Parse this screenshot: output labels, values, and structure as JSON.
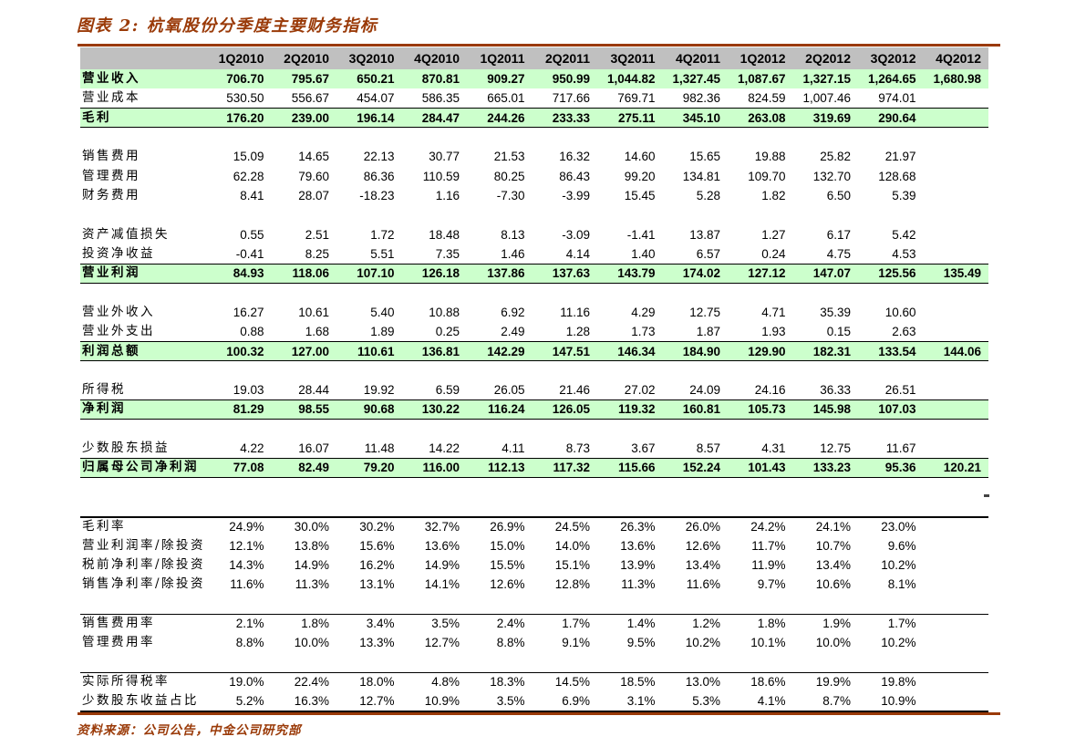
{
  "page": {
    "title": "图表 2: 杭氧股份分季度主要财务指标",
    "source_note": "资料来源：公司公告，中金公司研究部"
  },
  "colors": {
    "accent": "#9a3a08",
    "header_bg": "#c0c0c0",
    "highlight_bg": "#ccffcc"
  },
  "table": {
    "columns": [
      "1Q2010",
      "2Q2010",
      "3Q2010",
      "4Q2010",
      "1Q2011",
      "2Q2011",
      "3Q2011",
      "4Q2011",
      "1Q2012",
      "2Q2012",
      "3Q2012",
      "4Q2012"
    ],
    "rows": [
      {
        "label": "营业收入",
        "type": "highlight",
        "values": [
          "706.70",
          "795.67",
          "650.21",
          "870.81",
          "909.27",
          "950.99",
          "1,044.82",
          "1,327.45",
          "1,087.67",
          "1,327.15",
          "1,264.65",
          "1,680.98"
        ]
      },
      {
        "label": "营业成本",
        "type": "plain",
        "values": [
          "530.50",
          "556.67",
          "454.07",
          "586.35",
          "665.01",
          "717.66",
          "769.71",
          "982.36",
          "824.59",
          "1,007.46",
          "974.01",
          ""
        ]
      },
      {
        "label": "毛利",
        "type": "subtotal",
        "values": [
          "176.20",
          "239.00",
          "196.14",
          "284.47",
          "244.26",
          "233.33",
          "275.11",
          "345.10",
          "263.08",
          "319.69",
          "290.64",
          ""
        ]
      },
      {
        "type": "spacer"
      },
      {
        "label": "销售费用",
        "type": "plain",
        "values": [
          "15.09",
          "14.65",
          "22.13",
          "30.77",
          "21.53",
          "16.32",
          "14.60",
          "15.65",
          "19.88",
          "25.82",
          "21.97",
          ""
        ]
      },
      {
        "label": "管理费用",
        "type": "plain",
        "values": [
          "62.28",
          "79.60",
          "86.36",
          "110.59",
          "80.25",
          "86.43",
          "99.20",
          "134.81",
          "109.70",
          "132.70",
          "128.68",
          ""
        ]
      },
      {
        "label": "财务费用",
        "type": "plain",
        "values": [
          "8.41",
          "28.07",
          "-18.23",
          "1.16",
          "-7.30",
          "-3.99",
          "15.45",
          "5.28",
          "1.82",
          "6.50",
          "5.39",
          ""
        ]
      },
      {
        "type": "spacer"
      },
      {
        "label": "资产减值损失",
        "type": "plain",
        "values": [
          "0.55",
          "2.51",
          "1.72",
          "18.48",
          "8.13",
          "-3.09",
          "-1.41",
          "13.87",
          "1.27",
          "6.17",
          "5.42",
          ""
        ]
      },
      {
        "label": "投资净收益",
        "type": "plain",
        "values": [
          "-0.41",
          "8.25",
          "5.51",
          "7.35",
          "1.46",
          "4.14",
          "1.40",
          "6.57",
          "0.24",
          "4.75",
          "4.53",
          ""
        ]
      },
      {
        "label": "营业利润",
        "type": "subtotal",
        "values": [
          "84.93",
          "118.06",
          "107.10",
          "126.18",
          "137.86",
          "137.63",
          "143.79",
          "174.02",
          "127.12",
          "147.07",
          "125.56",
          "135.49"
        ]
      },
      {
        "type": "spacer"
      },
      {
        "label": "营业外收入",
        "type": "plain",
        "values": [
          "16.27",
          "10.61",
          "5.40",
          "10.88",
          "6.92",
          "11.16",
          "4.29",
          "12.75",
          "4.71",
          "35.39",
          "10.60",
          ""
        ]
      },
      {
        "label": "营业外支出",
        "type": "plain",
        "values": [
          "0.88",
          "1.68",
          "1.89",
          "0.25",
          "2.49",
          "1.28",
          "1.73",
          "1.87",
          "1.93",
          "0.15",
          "2.63",
          ""
        ]
      },
      {
        "label": "利润总额",
        "type": "subtotal",
        "values": [
          "100.32",
          "127.00",
          "110.61",
          "136.81",
          "142.29",
          "147.51",
          "146.34",
          "184.90",
          "129.90",
          "182.31",
          "133.54",
          "144.06"
        ]
      },
      {
        "type": "spacer"
      },
      {
        "label": "所得税",
        "type": "plain",
        "values": [
          "19.03",
          "28.44",
          "19.92",
          "6.59",
          "26.05",
          "21.46",
          "27.02",
          "24.09",
          "24.16",
          "36.33",
          "26.51",
          ""
        ]
      },
      {
        "label": "净利润",
        "type": "subtotal",
        "values": [
          "81.29",
          "98.55",
          "90.68",
          "130.22",
          "116.24",
          "126.05",
          "119.32",
          "160.81",
          "105.73",
          "145.98",
          "107.03",
          ""
        ]
      },
      {
        "type": "spacer"
      },
      {
        "label": "少数股东损益",
        "type": "plain",
        "values": [
          "4.22",
          "16.07",
          "11.48",
          "14.22",
          "4.11",
          "8.73",
          "3.67",
          "8.57",
          "4.31",
          "12.75",
          "11.67",
          ""
        ]
      },
      {
        "label": "归属母公司净利润",
        "type": "subtotal",
        "values": [
          "77.08",
          "82.49",
          "79.20",
          "116.00",
          "112.13",
          "117.32",
          "115.66",
          "152.24",
          "101.43",
          "133.23",
          "95.36",
          "120.21"
        ]
      },
      {
        "type": "spacer"
      },
      {
        "type": "spacer"
      },
      {
        "label": "毛利率",
        "type": "plain",
        "rule": "rule-top-thick",
        "values": [
          "24.9%",
          "30.0%",
          "30.2%",
          "32.7%",
          "26.9%",
          "24.5%",
          "26.3%",
          "26.0%",
          "24.2%",
          "24.1%",
          "23.0%",
          ""
        ]
      },
      {
        "label": "营业利润率/除投资",
        "type": "plain",
        "values": [
          "12.1%",
          "13.8%",
          "15.6%",
          "13.6%",
          "15.0%",
          "14.0%",
          "13.6%",
          "12.6%",
          "11.7%",
          "10.7%",
          "9.6%",
          ""
        ]
      },
      {
        "label": "税前净利率/除投资",
        "type": "plain",
        "values": [
          "14.3%",
          "14.9%",
          "16.2%",
          "14.9%",
          "15.5%",
          "15.1%",
          "13.9%",
          "13.4%",
          "11.9%",
          "13.4%",
          "10.2%",
          ""
        ]
      },
      {
        "label": "销售净利率/除投资",
        "type": "plain",
        "values": [
          "11.6%",
          "11.3%",
          "13.1%",
          "14.1%",
          "12.6%",
          "12.8%",
          "11.3%",
          "11.6%",
          "9.7%",
          "10.6%",
          "8.1%",
          ""
        ]
      },
      {
        "type": "spacer"
      },
      {
        "label": "销售费用率",
        "type": "plain",
        "rule": "rule-top-thin",
        "values": [
          "2.1%",
          "1.8%",
          "3.4%",
          "3.5%",
          "2.4%",
          "1.7%",
          "1.4%",
          "1.2%",
          "1.8%",
          "1.9%",
          "1.7%",
          ""
        ]
      },
      {
        "label": "管理费用率",
        "type": "plain",
        "values": [
          "8.8%",
          "10.0%",
          "13.3%",
          "12.7%",
          "8.8%",
          "9.1%",
          "9.5%",
          "10.2%",
          "10.1%",
          "10.0%",
          "10.2%",
          ""
        ]
      },
      {
        "type": "spacer"
      },
      {
        "label": "实际所得税率",
        "type": "plain",
        "rule": "rule-top-thin",
        "values": [
          "19.0%",
          "22.4%",
          "18.0%",
          "4.8%",
          "18.3%",
          "14.5%",
          "18.5%",
          "13.0%",
          "18.6%",
          "19.9%",
          "19.8%",
          ""
        ]
      },
      {
        "label": "少数股东收益占比",
        "type": "plain",
        "rule": "rule-bottom-thick",
        "values": [
          "5.2%",
          "16.3%",
          "12.7%",
          "10.9%",
          "3.5%",
          "6.9%",
          "3.1%",
          "5.3%",
          "4.1%",
          "8.7%",
          "10.9%",
          ""
        ]
      }
    ]
  }
}
